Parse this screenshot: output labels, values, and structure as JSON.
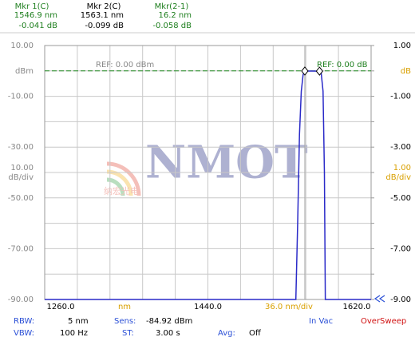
{
  "header": {
    "markers": [
      {
        "name": "Mkr 1(C)",
        "x": "1546.9 nm",
        "y": "-0.041 dB"
      },
      {
        "name": "Mkr 2(C)",
        "x": "1563.1 nm",
        "y": "-0.099 dB"
      },
      {
        "name": "Mkr(2-1)",
        "x": "16.2 nm",
        "y": "-0.058 dB"
      }
    ]
  },
  "chart_data": {
    "type": "line",
    "x": [
      1260,
      1537,
      1539,
      1541,
      1543,
      1545,
      1546.9,
      1555,
      1563.1,
      1565,
      1567,
      1568.5,
      1569.5,
      1620
    ],
    "series": [
      {
        "name": "Trace A",
        "color": "#2a2ac8",
        "values": [
          -90,
          -90,
          -60,
          -25,
          -8,
          -1.5,
          -0.041,
          -0.06,
          -0.099,
          -1,
          -8,
          -40,
          -90,
          -90
        ]
      }
    ],
    "marker_points": [
      6,
      8
    ],
    "xlim": [
      1260,
      1620
    ],
    "xticks": [
      {
        "value": 1260,
        "label": "1260.0"
      },
      {
        "value": 1296,
        "label": null
      },
      {
        "value": 1332,
        "label": null
      },
      {
        "value": 1368,
        "label": null
      },
      {
        "value": 1404,
        "label": null
      },
      {
        "value": 1440,
        "label": "1440.0"
      },
      {
        "value": 1476,
        "label": null
      },
      {
        "value": 1512,
        "label": null
      },
      {
        "value": 1548,
        "label": null
      },
      {
        "value": 1584,
        "label": null
      },
      {
        "value": 1620,
        "label": "1620.0"
      }
    ],
    "x_unit": "nm",
    "x_div_label": "36.0 nm/div",
    "ylim": [
      -90,
      10
    ],
    "yticks": [
      {
        "value": 10,
        "label": "10.00"
      },
      {
        "value": 0,
        "label": "dBm"
      },
      {
        "value": -10,
        "label": "-10.00"
      },
      {
        "value": -20,
        "label": null
      },
      {
        "value": -30,
        "label": "-30.00"
      },
      {
        "value": -40,
        "label": null
      },
      {
        "value": -50,
        "label": "-50.00"
      },
      {
        "value": -60,
        "label": null
      },
      {
        "value": -70,
        "label": "-70.00"
      },
      {
        "value": -80,
        "label": null
      },
      {
        "value": -90,
        "label": "-90.00"
      }
    ],
    "y_div_label": [
      "10.00",
      "dB/div"
    ],
    "y_div_at": -40,
    "y2lim": [
      -9,
      1
    ],
    "y2ticks": [
      {
        "value": 1,
        "label": "1.00"
      },
      {
        "value": 0,
        "label": "dB"
      },
      {
        "value": -1,
        "label": "-1.00"
      },
      {
        "value": -2,
        "label": null
      },
      {
        "value": -3,
        "label": "-3.00"
      },
      {
        "value": -4,
        "label": null
      },
      {
        "value": -5,
        "label": "-5.00"
      },
      {
        "value": -6,
        "label": null
      },
      {
        "value": -7,
        "label": "-7.00"
      },
      {
        "value": -8,
        "label": null
      },
      {
        "value": -9,
        "label": "-9.00"
      }
    ],
    "y2_div_label": [
      "1.00",
      "dB/div"
    ],
    "ref_level": 0,
    "ref_label_left": "REF: 0.00 dBm",
    "ref_label_right": "REF: 0.00 dB",
    "grid": true
  },
  "watermark": {
    "brand": "NMOT",
    "sub": "纳宏光电"
  },
  "footer": {
    "rbw_label": "RBW:",
    "rbw": "5 nm",
    "sens_label": "Sens:",
    "sens": "-84.92 dBm",
    "medium": "In Vac",
    "status": "OverSweep",
    "vbw_label": "VBW:",
    "vbw": "100 Hz",
    "st_label": "ST:",
    "st": "3.00 s",
    "avg_label": "Avg:",
    "avg": "Off"
  }
}
